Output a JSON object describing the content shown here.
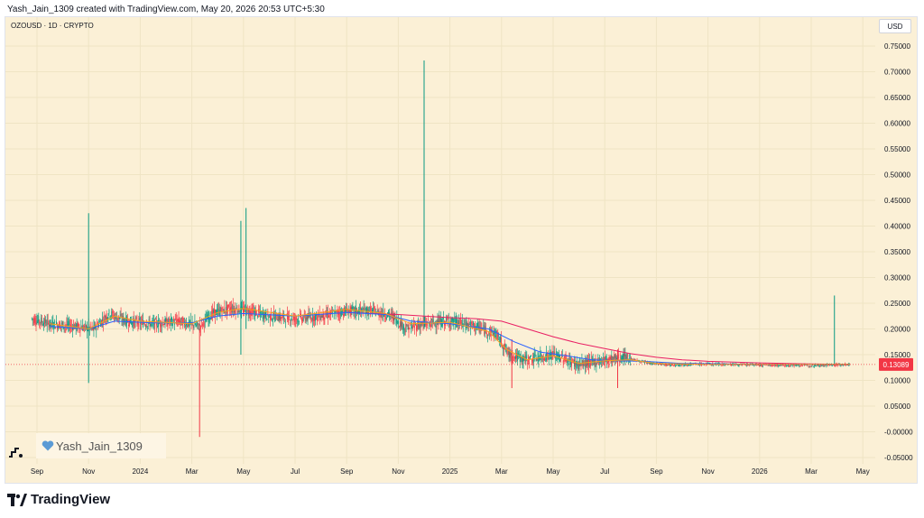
{
  "caption": "Yash_Jain_1309 created with TradingView.com, May 20, 2026 20:53 UTC+5:30",
  "symbol_line": "OZOUSD · 1D · CRYPTO",
  "currency": "USD",
  "watermark": "Yash_Jain_1309",
  "brand": "TradingView",
  "colors": {
    "background": "#fbf0d6",
    "candle_up": "#089981",
    "candle_down": "#f23645",
    "ma_fast": "#f7a21b",
    "ma_mid": "#2962ff",
    "ma_slow": "#e91e63",
    "price_label": "#f23645"
  },
  "icons": [
    "heart-icon",
    "tradingview-logo-icon"
  ],
  "chart_data": {
    "type": "candlestick",
    "symbol": "OZOUSD",
    "interval": "1D",
    "last_price": 0.13089,
    "last_price_label": "0.13089",
    "ylim": [
      -0.05,
      0.75
    ],
    "y_ticks": [
      "0.75000",
      "0.70000",
      "0.65000",
      "0.60000",
      "0.55000",
      "0.50000",
      "0.45000",
      "0.40000",
      "0.35000",
      "0.30000",
      "0.25000",
      "0.20000",
      "0.15000",
      "0.10000",
      "0.05000",
      "-0.00000",
      "-0.05000"
    ],
    "x_ticks": [
      {
        "label": "Sep",
        "t": 0.0
      },
      {
        "label": "Nov",
        "t": 2.0
      },
      {
        "label": "2024",
        "t": 4.0
      },
      {
        "label": "Mar",
        "t": 6.0
      },
      {
        "label": "May",
        "t": 8.0
      },
      {
        "label": "Jul",
        "t": 10.0
      },
      {
        "label": "Sep",
        "t": 12.0
      },
      {
        "label": "Nov",
        "t": 14.0
      },
      {
        "label": "2025",
        "t": 16.0
      },
      {
        "label": "Mar",
        "t": 18.0
      },
      {
        "label": "May",
        "t": 20.0
      },
      {
        "label": "Jul",
        "t": 22.0
      },
      {
        "label": "Sep",
        "t": 24.0
      },
      {
        "label": "Nov",
        "t": 26.0
      },
      {
        "label": "2026",
        "t": 28.0
      },
      {
        "label": "Mar",
        "t": 30.0
      },
      {
        "label": "May",
        "t": 32.0
      }
    ],
    "price_path": [
      [
        -0.2,
        0.22
      ],
      [
        0.5,
        0.21
      ],
      [
        1.5,
        0.205
      ],
      [
        2.2,
        0.2
      ],
      [
        2.8,
        0.23
      ],
      [
        3.5,
        0.215
      ],
      [
        4.5,
        0.21
      ],
      [
        5.5,
        0.215
      ],
      [
        6.3,
        0.205
      ],
      [
        6.8,
        0.23
      ],
      [
        7.5,
        0.24
      ],
      [
        8.2,
        0.235
      ],
      [
        9.0,
        0.225
      ],
      [
        10.0,
        0.22
      ],
      [
        11.0,
        0.225
      ],
      [
        12.0,
        0.235
      ],
      [
        13.0,
        0.235
      ],
      [
        13.8,
        0.225
      ],
      [
        14.3,
        0.2
      ],
      [
        15.0,
        0.21
      ],
      [
        16.0,
        0.215
      ],
      [
        17.0,
        0.205
      ],
      [
        17.8,
        0.19
      ],
      [
        18.3,
        0.15
      ],
      [
        19.0,
        0.14
      ],
      [
        20.0,
        0.15
      ],
      [
        21.0,
        0.13
      ],
      [
        22.0,
        0.14
      ],
      [
        22.8,
        0.145
      ],
      [
        23.5,
        0.135
      ],
      [
        24.5,
        0.13
      ],
      [
        26.0,
        0.132
      ],
      [
        28.0,
        0.13
      ],
      [
        30.0,
        0.129
      ],
      [
        31.5,
        0.1309
      ]
    ],
    "spikes": [
      {
        "t": 2.0,
        "high": 0.425,
        "low": 0.095
      },
      {
        "t": 6.3,
        "high": 0.2,
        "low": -0.01
      },
      {
        "t": 7.9,
        "high": 0.41,
        "low": 0.15
      },
      {
        "t": 8.1,
        "high": 0.435,
        "low": 0.2
      },
      {
        "t": 15.0,
        "high": 0.722,
        "low": 0.2
      },
      {
        "t": 18.4,
        "high": 0.18,
        "low": 0.085
      },
      {
        "t": 22.5,
        "high": 0.16,
        "low": 0.085
      },
      {
        "t": 30.9,
        "high": 0.265,
        "low": 0.13
      }
    ],
    "ma_slow": [
      [
        12.0,
        0.232
      ],
      [
        14.0,
        0.228
      ],
      [
        16.0,
        0.222
      ],
      [
        17.0,
        0.22
      ],
      [
        18.0,
        0.215
      ],
      [
        19.0,
        0.2
      ],
      [
        20.0,
        0.185
      ],
      [
        21.0,
        0.172
      ],
      [
        22.0,
        0.162
      ],
      [
        23.0,
        0.152
      ],
      [
        24.0,
        0.145
      ],
      [
        25.0,
        0.14
      ],
      [
        26.0,
        0.137
      ],
      [
        28.0,
        0.134
      ],
      [
        30.0,
        0.132
      ],
      [
        31.5,
        0.131
      ]
    ],
    "ma_mid": [
      [
        0.5,
        0.205
      ],
      [
        2.0,
        0.2
      ],
      [
        3.0,
        0.215
      ],
      [
        4.5,
        0.212
      ],
      [
        6.0,
        0.212
      ],
      [
        7.0,
        0.225
      ],
      [
        8.0,
        0.23
      ],
      [
        10.0,
        0.225
      ],
      [
        12.0,
        0.232
      ],
      [
        13.5,
        0.228
      ],
      [
        14.5,
        0.215
      ],
      [
        16.0,
        0.21
      ],
      [
        17.5,
        0.2
      ],
      [
        18.5,
        0.175
      ],
      [
        19.5,
        0.155
      ],
      [
        20.5,
        0.148
      ],
      [
        21.5,
        0.14
      ],
      [
        22.5,
        0.138
      ],
      [
        23.5,
        0.137
      ],
      [
        25.0,
        0.133
      ],
      [
        28.0,
        0.131
      ],
      [
        31.5,
        0.131
      ]
    ],
    "ma_fast": [
      [
        0.5,
        0.21
      ],
      [
        2.0,
        0.2
      ],
      [
        3.0,
        0.225
      ],
      [
        4.0,
        0.215
      ],
      [
        6.0,
        0.21
      ],
      [
        7.0,
        0.232
      ],
      [
        8.0,
        0.24
      ],
      [
        10.0,
        0.225
      ],
      [
        12.0,
        0.238
      ],
      [
        13.5,
        0.23
      ],
      [
        14.5,
        0.21
      ],
      [
        16.0,
        0.213
      ],
      [
        17.5,
        0.195
      ],
      [
        18.2,
        0.16
      ],
      [
        19.0,
        0.14
      ],
      [
        20.0,
        0.148
      ],
      [
        21.0,
        0.133
      ],
      [
        22.0,
        0.138
      ],
      [
        23.0,
        0.14
      ],
      [
        24.0,
        0.133
      ],
      [
        26.0,
        0.131
      ],
      [
        31.5,
        0.131
      ]
    ]
  }
}
